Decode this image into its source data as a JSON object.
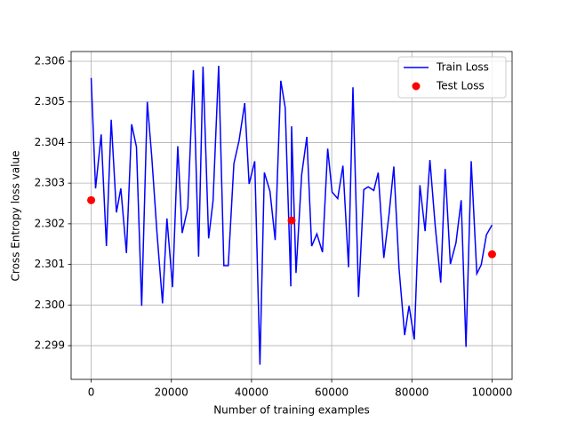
{
  "chart_data": {
    "type": "line",
    "xlabel": "Number of training examples",
    "ylabel": "Cross Entropy loss value",
    "xlim": [
      -5000,
      105000
    ],
    "ylim": [
      2.29817,
      2.30624
    ],
    "xticks": [
      0,
      20000,
      40000,
      60000,
      80000,
      100000
    ],
    "yticks": [
      2.299,
      {
        "value": 2.3,
        "label": "2.300"
      },
      2.301,
      2.302,
      2.303,
      2.304,
      2.305,
      2.306
    ],
    "grid": true,
    "legend": "upper right",
    "series": [
      {
        "name": "Train Loss",
        "type": "line",
        "color": "#0000ff",
        "x": [
          0,
          1100,
          2500,
          3800,
          5000,
          6300,
          7400,
          8800,
          10100,
          11300,
          12600,
          14000,
          15100,
          16400,
          17800,
          18900,
          20300,
          21600,
          22700,
          24100,
          25500,
          26800,
          27900,
          29300,
          30400,
          31800,
          33100,
          34200,
          35600,
          36900,
          38300,
          39400,
          40800,
          42100,
          43200,
          44600,
          45900,
          47300,
          48400,
          49800,
          50000,
          51100,
          52500,
          53800,
          55000,
          56300,
          57700,
          59000,
          60100,
          61500,
          62800,
          64200,
          65300,
          66700,
          68000,
          69100,
          70500,
          71600,
          73000,
          74300,
          75500,
          76800,
          78200,
          79300,
          80600,
          82000,
          83300,
          84500,
          85800,
          87200,
          88300,
          89600,
          91000,
          92300,
          93500,
          94800,
          96200,
          97300,
          98600,
          100000
        ],
        "values": [
          2.30559,
          2.30287,
          2.3042,
          2.30145,
          2.30456,
          2.30228,
          2.30287,
          2.30128,
          2.30445,
          2.30389,
          2.29998,
          2.305,
          2.30367,
          2.3018,
          2.30004,
          2.30213,
          2.30044,
          2.30391,
          2.30177,
          2.30239,
          2.30578,
          2.30119,
          2.30587,
          2.30164,
          2.30256,
          2.30589,
          2.30097,
          2.30097,
          2.30348,
          2.30405,
          2.30497,
          2.30298,
          2.30354,
          2.29853,
          2.30326,
          2.3028,
          2.3016,
          2.30552,
          2.30486,
          2.30046,
          2.3044,
          2.30079,
          2.3032,
          2.30414,
          2.30145,
          2.30175,
          2.3013,
          2.30385,
          2.30278,
          2.30262,
          2.30343,
          2.30093,
          2.30536,
          2.3002,
          2.30284,
          2.30291,
          2.30282,
          2.30326,
          2.30116,
          2.30223,
          2.30341,
          2.3009,
          2.29926,
          2.29998,
          2.29915,
          2.30295,
          2.30182,
          2.30357,
          2.30197,
          2.30055,
          2.30335,
          2.30101,
          2.30153,
          2.30258,
          2.29897,
          2.30354,
          2.30077,
          2.30099,
          2.30173,
          2.30197
        ]
      },
      {
        "name": "Test Loss",
        "type": "scatter",
        "color": "#ff0000",
        "x": [
          0,
          50000,
          100000
        ],
        "values": [
          2.30258,
          2.30208,
          2.30125
        ]
      }
    ]
  }
}
